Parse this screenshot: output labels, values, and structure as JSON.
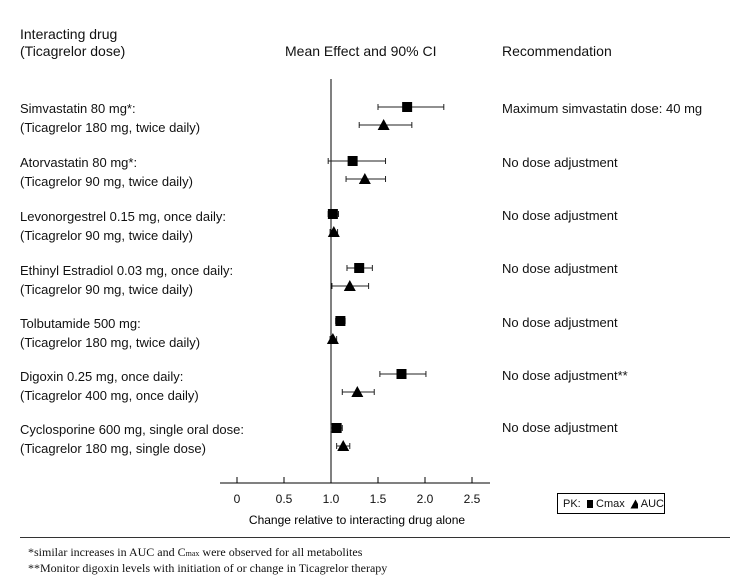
{
  "header": {
    "drug_line1": "Interacting drug",
    "drug_line2": "(Ticagrelor dose)",
    "effect": "Mean Effect and 90% CI",
    "recommendation": "Recommendation"
  },
  "rows": [
    {
      "drug": "Simvastatin 80 mg*:",
      "dose": "(Ticagrelor 180 mg, twice daily)",
      "rec": "Maximum simvastatin dose: 40 mg"
    },
    {
      "drug": "Atorvastatin 80 mg*:",
      "dose": "(Ticagrelor 90 mg, twice daily)",
      "rec": "No dose adjustment"
    },
    {
      "drug": "Levonorgestrel 0.15 mg, once daily:",
      "dose": "(Ticagrelor 90 mg, twice daily)",
      "rec": "No dose adjustment"
    },
    {
      "drug": "Ethinyl Estradiol 0.03 mg, once daily:",
      "dose": "(Ticagrelor 90 mg, twice daily)",
      "rec": "No dose adjustment"
    },
    {
      "drug": "Tolbutamide 500 mg:",
      "dose": "(Ticagrelor 180 mg, twice daily)",
      "rec": "No dose adjustment"
    },
    {
      "drug": "Digoxin 0.25 mg, once daily:",
      "dose": "(Ticagrelor 400 mg, once daily)",
      "rec": "No dose adjustment**"
    },
    {
      "drug": "Cyclosporine 600 mg, single oral dose:",
      "dose": "(Ticagrelor 180 mg, single dose)",
      "rec": "No dose adjustment"
    }
  ],
  "chart_data": {
    "type": "forest",
    "title": "Mean Effect and 90% CI",
    "xlabel": "Change relative to interacting drug alone",
    "xlim": [
      -0.2,
      2.7
    ],
    "xticks": [
      0,
      0.5,
      1.0,
      1.5,
      2.0,
      2.5
    ],
    "xtick_labels": [
      "0",
      "0.5",
      "1.0",
      "1.5",
      "2.0",
      "2.5"
    ],
    "reference_line": 1.0,
    "series": [
      {
        "name": "Cmax",
        "marker": "square",
        "values": [
          1.81,
          1.23,
          1.02,
          1.3,
          1.1,
          1.75,
          1.06
        ],
        "ci_low": [
          1.5,
          0.97,
          0.97,
          1.17,
          1.05,
          1.52,
          1.0
        ],
        "ci_high": [
          2.2,
          1.58,
          1.08,
          1.44,
          1.15,
          2.01,
          1.12
        ]
      },
      {
        "name": "AUC",
        "marker": "triangle",
        "values": [
          1.56,
          1.36,
          1.03,
          1.2,
          1.02,
          1.28,
          1.13
        ],
        "ci_low": [
          1.3,
          1.16,
          0.99,
          1.01,
          0.99,
          1.12,
          1.06
        ],
        "ci_high": [
          1.86,
          1.58,
          1.07,
          1.4,
          1.06,
          1.46,
          1.2
        ]
      }
    ],
    "legend": {
      "prefix": "PK:",
      "placement": "bottom-right"
    }
  },
  "footnotes": {
    "note1_pre": "*similar increases in AUC and C",
    "note1_sub": "max",
    "note1_post": " were observed for all metabolites",
    "note2": "**Monitor digoxin levels with initiation of or change in Ticagrelor therapy"
  }
}
